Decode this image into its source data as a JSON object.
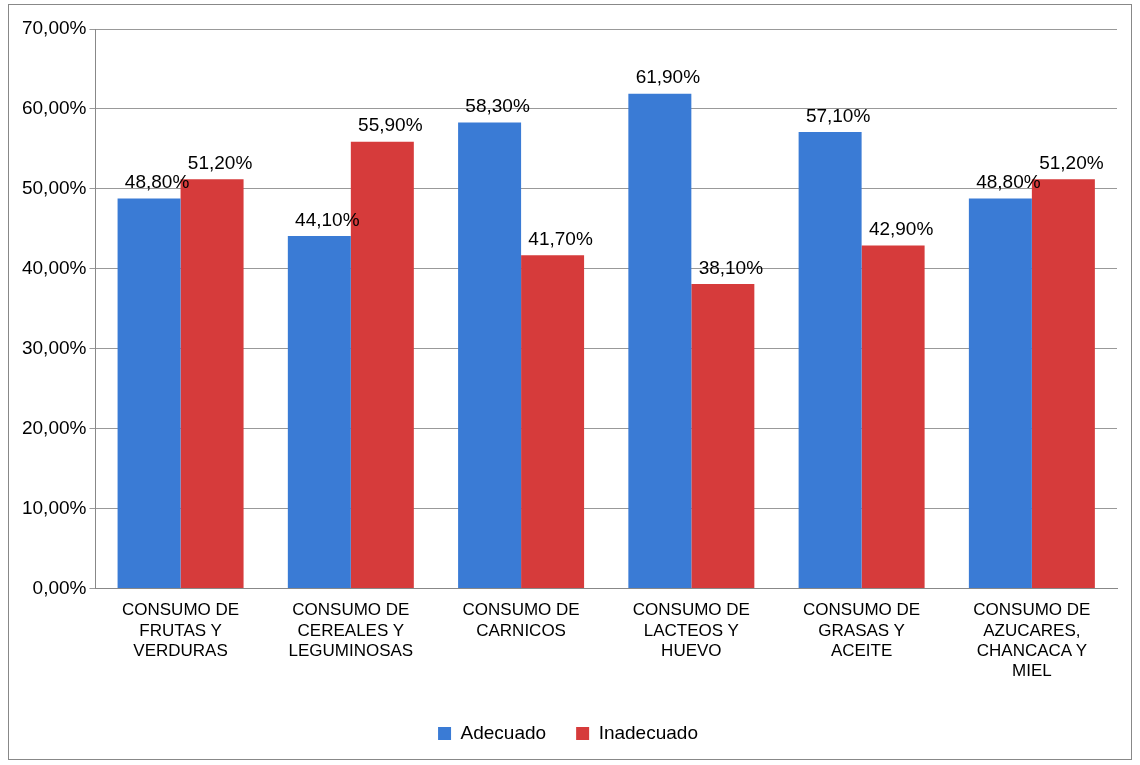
{
  "chart_data": {
    "type": "bar",
    "categories": [
      "CONSUMO DE FRUTAS Y VERDURAS",
      "CONSUMO DE CEREALES Y LEGUMINOSAS",
      "CONSUMO DE CARNICOS",
      "CONSUMO DE LACTEOS Y HUEVO",
      "CONSUMO DE GRASAS Y ACEITE",
      "CONSUMO DE AZUCARES, CHANCACA Y MIEL"
    ],
    "series": [
      {
        "name": "Adecuado",
        "color": "#3a7bd5",
        "values": [
          48.8,
          44.1,
          58.3,
          61.9,
          57.1,
          48.8
        ],
        "value_labels": [
          "48,80%",
          "44,10%",
          "58,30%",
          "61,90%",
          "57,10%",
          "48,80%"
        ]
      },
      {
        "name": "Inadecuado",
        "color": "#d63b3b",
        "values": [
          51.2,
          55.9,
          41.7,
          38.1,
          42.9,
          51.2
        ],
        "value_labels": [
          "51,20%",
          "55,90%",
          "41,70%",
          "38,10%",
          "42,90%",
          "51,20%"
        ]
      }
    ],
    "ylim": [
      0,
      70
    ],
    "yticks": [
      {
        "value": 0,
        "label": "0,00%"
      },
      {
        "value": 10,
        "label": "10,00%"
      },
      {
        "value": 20,
        "label": "20,00%"
      },
      {
        "value": 30,
        "label": "30,00%"
      },
      {
        "value": 40,
        "label": "40,00%"
      },
      {
        "value": 50,
        "label": "50,00%"
      },
      {
        "value": 60,
        "label": "60,00%"
      },
      {
        "value": 70,
        "label": "70,00%"
      }
    ],
    "grid": "y",
    "legend": "bottom"
  }
}
